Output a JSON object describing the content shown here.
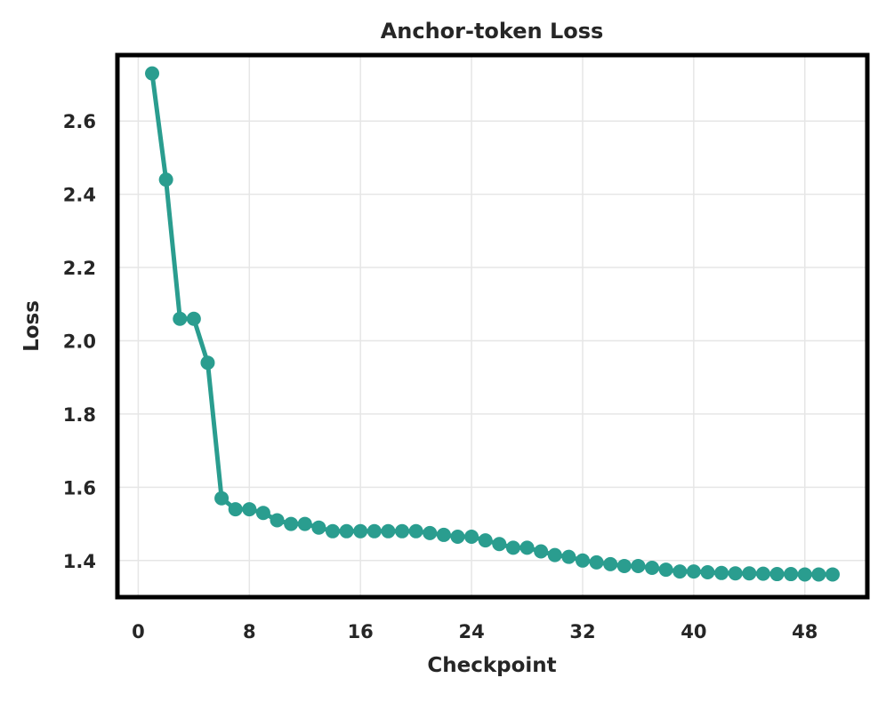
{
  "chart_data": {
    "type": "line",
    "title": "Anchor-token Loss",
    "xlabel": "Checkpoint",
    "ylabel": "Loss",
    "xlim": [
      -1.5,
      52.5
    ],
    "ylim": [
      1.3,
      2.78
    ],
    "xticks": [
      0,
      8,
      16,
      24,
      32,
      40,
      48
    ],
    "yticks": [
      1.4,
      1.6,
      1.8,
      2.0,
      2.2,
      2.4,
      2.6
    ],
    "xtick_labels": [
      "0",
      "8",
      "16",
      "24",
      "32",
      "40",
      "48"
    ],
    "ytick_labels": [
      "1.4",
      "1.6",
      "1.8",
      "2.0",
      "2.2",
      "2.4",
      "2.6"
    ],
    "grid": true,
    "series": [
      {
        "color": "#2a9d8f",
        "x": [
          1,
          2,
          3,
          4,
          5,
          6,
          7,
          8,
          9,
          10,
          11,
          12,
          13,
          14,
          15,
          16,
          17,
          18,
          19,
          20,
          21,
          22,
          23,
          24,
          25,
          26,
          27,
          28,
          29,
          30,
          31,
          32,
          33,
          34,
          35,
          36,
          37,
          38,
          39,
          40,
          41,
          42,
          43,
          44,
          45,
          46,
          47,
          48,
          49,
          50
        ],
        "y": [
          2.73,
          2.44,
          2.06,
          2.06,
          1.94,
          1.57,
          1.54,
          1.54,
          1.53,
          1.51,
          1.5,
          1.5,
          1.49,
          1.48,
          1.48,
          1.48,
          1.48,
          1.48,
          1.48,
          1.48,
          1.475,
          1.47,
          1.465,
          1.465,
          1.455,
          1.445,
          1.435,
          1.435,
          1.425,
          1.415,
          1.41,
          1.4,
          1.395,
          1.39,
          1.385,
          1.385,
          1.38,
          1.375,
          1.37,
          1.37,
          1.368,
          1.366,
          1.365,
          1.365,
          1.364,
          1.363,
          1.363,
          1.362,
          1.362,
          1.362
        ]
      }
    ]
  }
}
